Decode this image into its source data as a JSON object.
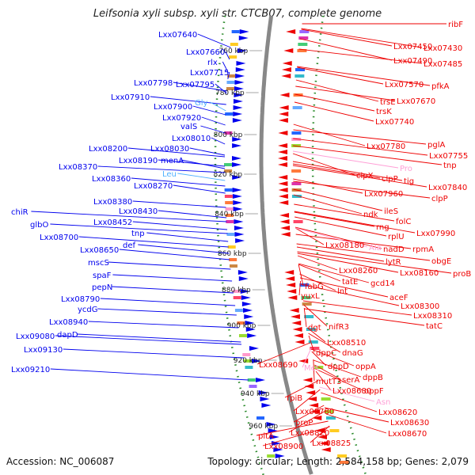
{
  "title": "Leifsonia xyli subsp. xyli str. CTCB07, complete genome",
  "footer": {
    "accession": "Accession: NC_006087",
    "topology": "Topology: circular; Length: 2,584,158 bp; Genes: 2,079"
  },
  "colors": {
    "forward_gene": "#0000ee",
    "reverse_gene": "#ee0000",
    "trna": "#4fb0ff",
    "trna_reverse": "#ff9fd6",
    "backbone": "#888888",
    "gc_skew_dots": "#2a8a2a"
  },
  "kbp_ticks": [
    "760 kbp",
    "780 kbp",
    "800 kbp",
    "820 kbp",
    "840 kbp",
    "860 kbp",
    "880 kbp",
    "900 kbp",
    "920 kbp",
    "940 kbp",
    "960 kbp"
  ],
  "left_labels": [
    {
      "text": "Lxx07640",
      "kind": "gene"
    },
    {
      "text": "Lxx07660",
      "kind": "gene"
    },
    {
      "text": "rlx",
      "kind": "gene"
    },
    {
      "text": "Lxx07715",
      "kind": "gene"
    },
    {
      "text": "Lxx07798",
      "kind": "gene"
    },
    {
      "text": "Lxx07795",
      "kind": "gene"
    },
    {
      "text": "Lxx07910",
      "kind": "gene"
    },
    {
      "text": "Gly",
      "kind": "trna"
    },
    {
      "text": "Lxx07900",
      "kind": "gene"
    },
    {
      "text": "Lxx07920",
      "kind": "gene"
    },
    {
      "text": "valS",
      "kind": "gene"
    },
    {
      "text": "Lxx08010",
      "kind": "gene"
    },
    {
      "text": "Lxx08030",
      "kind": "gene"
    },
    {
      "text": "Lxx08200",
      "kind": "gene"
    },
    {
      "text": "Lxx08190",
      "kind": "gene"
    },
    {
      "text": "menA",
      "kind": "gene"
    },
    {
      "text": "Lxx08370",
      "kind": "gene"
    },
    {
      "text": "Leu",
      "kind": "trna"
    },
    {
      "text": "Lxx08360",
      "kind": "gene"
    },
    {
      "text": "Lxx08270",
      "kind": "gene"
    },
    {
      "text": "Lxx08380",
      "kind": "gene"
    },
    {
      "text": "Lxx08430",
      "kind": "gene"
    },
    {
      "text": "chiR",
      "kind": "gene"
    },
    {
      "text": "Lxx08452",
      "kind": "gene"
    },
    {
      "text": "glbO",
      "kind": "gene"
    },
    {
      "text": "tnp",
      "kind": "gene"
    },
    {
      "text": "Lxx08700",
      "kind": "gene"
    },
    {
      "text": "def",
      "kind": "gene"
    },
    {
      "text": "Lxx08650",
      "kind": "gene"
    },
    {
      "text": "mscS",
      "kind": "gene"
    },
    {
      "text": "spaF",
      "kind": "gene"
    },
    {
      "text": "pepN",
      "kind": "gene"
    },
    {
      "text": "Lxx08790",
      "kind": "gene"
    },
    {
      "text": "ycdG",
      "kind": "gene"
    },
    {
      "text": "Lxx08940",
      "kind": "gene"
    },
    {
      "text": "Lxx09080",
      "kind": "gene"
    },
    {
      "text": "dapD",
      "kind": "gene"
    },
    {
      "text": "Lxx09130",
      "kind": "gene"
    },
    {
      "text": "Lxx09210",
      "kind": "gene"
    }
  ],
  "right_labels": [
    {
      "text": "ribF",
      "kind": "gene"
    },
    {
      "text": "Lxx07450",
      "kind": "gene"
    },
    {
      "text": "Lxx07430",
      "kind": "gene"
    },
    {
      "text": "Lxx07490",
      "kind": "gene"
    },
    {
      "text": "Lxx07485",
      "kind": "gene"
    },
    {
      "text": "Lxx07570",
      "kind": "gene"
    },
    {
      "text": "pfkA",
      "kind": "gene"
    },
    {
      "text": "trsE",
      "kind": "gene"
    },
    {
      "text": "Lxx07670",
      "kind": "gene"
    },
    {
      "text": "trsK",
      "kind": "gene"
    },
    {
      "text": "Lxx07740",
      "kind": "gene"
    },
    {
      "text": "Lxx07780",
      "kind": "gene"
    },
    {
      "text": "pglA",
      "kind": "gene"
    },
    {
      "text": "Lxx07755",
      "kind": "gene"
    },
    {
      "text": "tnp",
      "kind": "gene"
    },
    {
      "text": "clpX",
      "kind": "gene"
    },
    {
      "text": "clpP",
      "kind": "gene"
    },
    {
      "text": "Pro",
      "kind": "trna"
    },
    {
      "text": "tig",
      "kind": "gene"
    },
    {
      "text": "Lxx07840",
      "kind": "gene"
    },
    {
      "text": "Lxx07960",
      "kind": "gene"
    },
    {
      "text": "clpP",
      "kind": "gene"
    },
    {
      "text": "ndk",
      "kind": "gene"
    },
    {
      "text": "ileS",
      "kind": "gene"
    },
    {
      "text": "rng",
      "kind": "gene"
    },
    {
      "text": "folC",
      "kind": "gene"
    },
    {
      "text": "rplU",
      "kind": "gene"
    },
    {
      "text": "Lxx07990",
      "kind": "gene"
    },
    {
      "text": "rpmA",
      "kind": "gene"
    },
    {
      "text": "Lxx08180",
      "kind": "gene"
    },
    {
      "text": "Ala",
      "kind": "trna"
    },
    {
      "text": "nadD",
      "kind": "gene"
    },
    {
      "text": "lytR",
      "kind": "gene"
    },
    {
      "text": "obgE",
      "kind": "gene"
    },
    {
      "text": "Lxx08160",
      "kind": "gene"
    },
    {
      "text": "proB",
      "kind": "gene"
    },
    {
      "text": "Lxx08260",
      "kind": "gene"
    },
    {
      "text": "tatE",
      "kind": "gene"
    },
    {
      "text": "gcd14",
      "kind": "gene"
    },
    {
      "text": "fabG",
      "kind": "gene"
    },
    {
      "text": "yuxL",
      "kind": "gene"
    },
    {
      "text": "lnt",
      "kind": "gene"
    },
    {
      "text": "aceF",
      "kind": "gene"
    },
    {
      "text": "Lxx08300",
      "kind": "gene"
    },
    {
      "text": "Lxx08310",
      "kind": "gene"
    },
    {
      "text": "tatC",
      "kind": "gene"
    },
    {
      "text": "dgt",
      "kind": "gene"
    },
    {
      "text": "nifR3",
      "kind": "gene"
    },
    {
      "text": "Lxx08510",
      "kind": "gene"
    },
    {
      "text": "dppC",
      "kind": "gene"
    },
    {
      "text": "dnaG",
      "kind": "gene"
    },
    {
      "text": "Lxx08690",
      "kind": "gene"
    },
    {
      "text": "dppD",
      "kind": "gene"
    },
    {
      "text": "oppA",
      "kind": "gene"
    },
    {
      "text": "Met",
      "kind": "trna"
    },
    {
      "text": "mutT3",
      "kind": "gene"
    },
    {
      "text": "serA",
      "kind": "gene"
    },
    {
      "text": "dppB",
      "kind": "gene"
    },
    {
      "text": "Lxx08680",
      "kind": "gene"
    },
    {
      "text": "oppF",
      "kind": "gene"
    },
    {
      "text": "Asn",
      "kind": "trna"
    },
    {
      "text": "rpiB",
      "kind": "gene"
    },
    {
      "text": "Lxx08620",
      "kind": "gene"
    },
    {
      "text": "Lxx08780",
      "kind": "gene"
    },
    {
      "text": "Lxx08630",
      "kind": "gene"
    },
    {
      "text": "proP",
      "kind": "gene"
    },
    {
      "text": "Lxx08670",
      "kind": "gene"
    },
    {
      "text": "Lxx08820",
      "kind": "gene"
    },
    {
      "text": "pitA",
      "kind": "gene"
    },
    {
      "text": "Lxx08825",
      "kind": "gene"
    },
    {
      "text": "Lxx08900",
      "kind": "gene"
    }
  ]
}
